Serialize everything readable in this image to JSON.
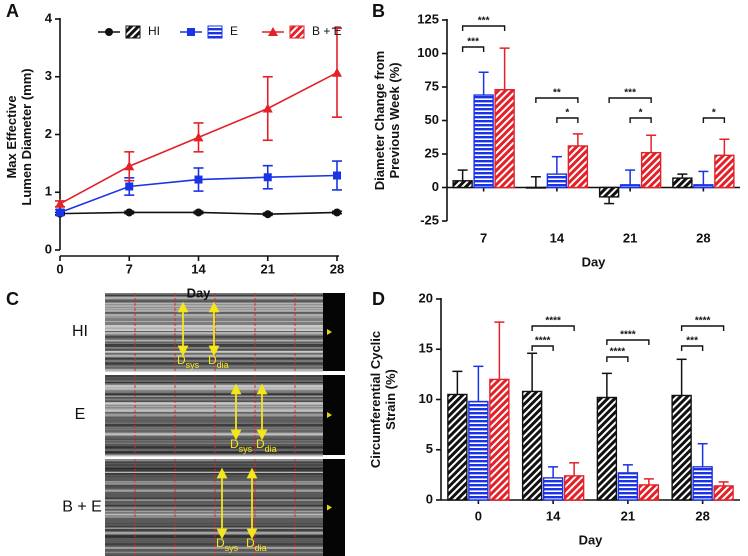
{
  "panels": [
    "A",
    "B",
    "C",
    "D"
  ],
  "chart_data": [
    {
      "type": "line",
      "ylabel": [
        "Max Effective",
        "Lumen Diameter (mm)"
      ],
      "xlabel": "Day",
      "x": [
        0,
        7,
        14,
        21,
        28
      ],
      "xlim": [
        0,
        28
      ],
      "xticks": [
        0,
        7,
        14,
        21,
        28
      ],
      "ylim": [
        0,
        4
      ],
      "yticks": [
        0,
        1,
        2,
        3,
        4
      ],
      "series": [
        {
          "name": "HI",
          "color": "#111111",
          "marker": "circle",
          "values": [
            0.63,
            0.65,
            0.65,
            0.62,
            0.65
          ],
          "errors": [
            0.02,
            0.02,
            0.02,
            0.02,
            0.02
          ]
        },
        {
          "name": "E",
          "color": "#1a33e6",
          "marker": "square",
          "values": [
            0.65,
            1.1,
            1.22,
            1.26,
            1.29
          ],
          "errors": [
            0.05,
            0.15,
            0.2,
            0.2,
            0.25
          ]
        },
        {
          "name": "B + E",
          "color": "#e32128",
          "marker": "triangle",
          "values": [
            0.8,
            1.45,
            1.95,
            2.45,
            3.07
          ],
          "errors": [
            0.05,
            0.25,
            0.25,
            0.55,
            0.77
          ]
        }
      ]
    },
    {
      "type": "bar",
      "ylabel": [
        "Diameter Change from",
        "Previous Week (%)"
      ],
      "xlabel": "Day",
      "categories": [
        "7",
        "14",
        "21",
        "28"
      ],
      "ylim": [
        -25,
        125
      ],
      "yticks": [
        -25,
        0,
        25,
        50,
        75,
        100,
        125
      ],
      "series": [
        {
          "name": "HI",
          "color": "#111111",
          "values": [
            5,
            0,
            -7,
            7
          ],
          "errors": [
            8,
            8,
            5,
            3
          ]
        },
        {
          "name": "E",
          "color": "#1a33e6",
          "values": [
            69,
            10,
            2,
            2
          ],
          "errors": [
            17,
            13,
            11,
            10
          ]
        },
        {
          "name": "B + E",
          "color": "#e32128",
          "values": [
            73,
            31,
            26,
            24
          ],
          "errors": [
            31,
            9,
            13,
            12
          ]
        }
      ],
      "annotations": [
        "***",
        "***",
        "**",
        "*",
        "***",
        "*",
        "*"
      ]
    },
    {
      "type": "bar",
      "ylabel": [
        "Circumferential Cyclic",
        "Strain (%)"
      ],
      "xlabel": "Day",
      "categories": [
        "0",
        "14",
        "21",
        "28"
      ],
      "ylim": [
        0,
        20
      ],
      "yticks": [
        0,
        5,
        10,
        15,
        20
      ],
      "series": [
        {
          "name": "HI",
          "color": "#111111",
          "values": [
            10.5,
            10.8,
            10.2,
            10.4
          ],
          "errors": [
            2.3,
            3.8,
            2.4,
            3.6
          ]
        },
        {
          "name": "E",
          "color": "#1a33e6",
          "values": [
            9.8,
            2.2,
            2.7,
            3.3
          ],
          "errors": [
            3.5,
            1.1,
            0.8,
            2.3
          ]
        },
        {
          "name": "B + E",
          "color": "#e32128",
          "values": [
            12,
            2.4,
            1.5,
            1.4
          ],
          "errors": [
            5.7,
            1.3,
            0.6,
            0.4
          ]
        }
      ],
      "annotations": [
        "****",
        "****",
        "****",
        "****",
        "***",
        "****"
      ]
    }
  ],
  "image_panel": {
    "rows": [
      {
        "label": "HI",
        "markers": [
          {
            "letter": "D",
            "sub": "sys"
          },
          {
            "letter": "D",
            "sub": "dia"
          }
        ]
      },
      {
        "label": "E",
        "markers": [
          {
            "letter": "D",
            "sub": "sys"
          },
          {
            "letter": "D",
            "sub": "dia"
          }
        ]
      },
      {
        "label": "B + E",
        "markers": [
          {
            "letter": "D",
            "sub": "sys"
          },
          {
            "letter": "D",
            "sub": "dia"
          }
        ]
      }
    ]
  }
}
